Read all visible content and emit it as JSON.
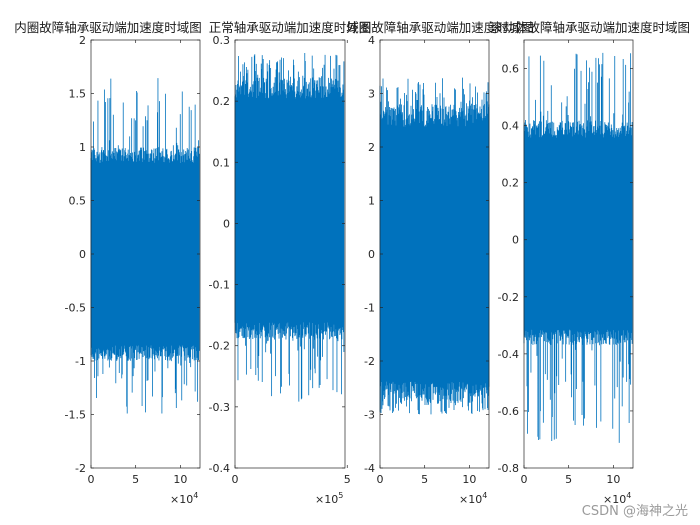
{
  "chart_data": [
    {
      "type": "line",
      "title": "内圈故障轴承驱动端加速度时域图",
      "xlim": [
        0,
        122000
      ],
      "ylim": [
        -2,
        2
      ],
      "xticks": [
        0,
        5,
        10
      ],
      "xtick_labels": [
        "0",
        "5",
        "10"
      ],
      "x_exponent": "4",
      "yticks": [
        -2,
        -1.5,
        -1,
        -0.5,
        0,
        0.5,
        1,
        1.5,
        2
      ],
      "ytick_labels": [
        "-2",
        "-1.5",
        "-1",
        "-0.5",
        "0",
        "0.5",
        "1",
        "1.5",
        "2"
      ],
      "x_scale": 10000,
      "n_samples": 121000,
      "signal": {
        "core_min": -1.0,
        "core_max": 1.0,
        "spike_min": -1.5,
        "spike_max": 1.65,
        "mean": 0
      },
      "series": [
        {
          "color": "#0072BD"
        }
      ]
    },
    {
      "type": "line",
      "title": "正常轴承驱动端加速度时域图",
      "xlim": [
        0,
        490000
      ],
      "ylim": [
        -0.4,
        0.3
      ],
      "xticks": [
        0,
        5
      ],
      "xtick_labels": [
        "0",
        "5"
      ],
      "x_exponent": "5",
      "yticks": [
        -0.4,
        -0.3,
        -0.2,
        -0.1,
        0,
        0.1,
        0.2,
        0.3
      ],
      "ytick_labels": [
        "-0.4",
        "-0.3",
        "-0.2",
        "-0.1",
        "0",
        "0.1",
        "0.2",
        "0.3"
      ],
      "x_scale": 100000,
      "n_samples": 485000,
      "signal": {
        "core_min": -0.19,
        "core_max": 0.24,
        "spike_min": -0.3,
        "spike_max": 0.28,
        "mean": 0.02
      },
      "series": [
        {
          "color": "#0072BD"
        }
      ]
    },
    {
      "type": "line",
      "title": "外圈故障轴承驱动端加速度时域图",
      "xlim": [
        0,
        122000
      ],
      "ylim": [
        -4,
        4
      ],
      "xticks": [
        0,
        5,
        10
      ],
      "xtick_labels": [
        "0",
        "5",
        "10"
      ],
      "x_exponent": "4",
      "yticks": [
        -4,
        -3,
        -2,
        -1,
        0,
        1,
        2,
        3,
        4
      ],
      "ytick_labels": [
        "-4",
        "-3",
        "-2",
        "-1",
        "0",
        "1",
        "2",
        "3",
        "4"
      ],
      "x_scale": 10000,
      "n_samples": 122000,
      "signal": {
        "core_min": -2.8,
        "core_max": 2.8,
        "spike_min": -3.0,
        "spike_max": 3.3,
        "mean": 0
      },
      "series": [
        {
          "color": "#0072BD"
        }
      ]
    },
    {
      "type": "line",
      "title": "滚动体故障轴承驱动端加速度时域图",
      "xlim": [
        0,
        122000
      ],
      "ylim": [
        -0.8,
        0.7
      ],
      "xticks": [
        0,
        5,
        10
      ],
      "xtick_labels": [
        "0",
        "5",
        "10"
      ],
      "x_exponent": "4",
      "yticks": [
        -0.8,
        -0.6,
        -0.4,
        -0.2,
        0,
        0.2,
        0.4,
        0.6
      ],
      "ytick_labels": [
        "-0.8",
        "-0.6",
        "-0.4",
        "-0.2",
        "0",
        "0.2",
        "0.4",
        "0.6"
      ],
      "x_scale": 10000,
      "n_samples": 121000,
      "signal": {
        "core_min": -0.37,
        "core_max": 0.42,
        "spike_min": -0.72,
        "spike_max": 0.66,
        "mean": 0
      },
      "series": [
        {
          "color": "#0072BD"
        }
      ]
    }
  ],
  "watermark": "CSDN @海神之光"
}
